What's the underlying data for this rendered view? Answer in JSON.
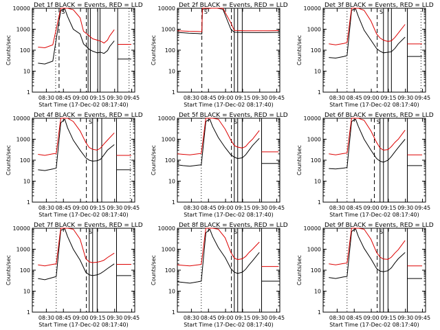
{
  "chart_data": [
    {
      "type": "line",
      "title": "Det 1f BLACK = Events, RED = LLD",
      "xlabel": "Start Time (17-Dec-02 08:17:40)",
      "ylabel": "Counts/sec",
      "x_ticks": [
        "08:30",
        "08:45",
        "09:00",
        "09:15",
        "09:30",
        "09:45"
      ],
      "y_ticks": [
        "1",
        "10",
        "100",
        "1000",
        "10000"
      ],
      "x_minutes": [
        5,
        11,
        18,
        25,
        28.5,
        31,
        36,
        42,
        45,
        50,
        53,
        57,
        60,
        63,
        66,
        68,
        72
      ],
      "series": [
        {
          "name": "Events",
          "color": "#000000",
          "values": [
            24,
            22,
            30,
            8000,
            9500,
            4000,
            1000,
            600,
            200,
            110,
            90,
            75,
            80,
            70,
            95,
            150,
            280
          ]
        },
        {
          "name": "LLD",
          "color": "#dd0000",
          "values": [
            140,
            130,
            180,
            10000,
            10000,
            10000,
            8500,
            3500,
            800,
            480,
            350,
            300,
            270,
            220,
            300,
            480,
            950
          ]
        }
      ],
      "post_series": {
        "x_minutes": [
          75,
          87
        ],
        "events": 38,
        "lld": 190
      },
      "solid_vlines": [
        49,
        51,
        57.5,
        59.5,
        75
      ],
      "dashed_vlines": [
        23.5,
        47.5
      ],
      "dotted_vlines": [
        20.5,
        85
      ],
      "markers": "S"
    },
    {
      "type": "line",
      "title": "Det 2f BLACK = Events, RED = LLD",
      "xlabel": "Start Time (17-Dec-02 08:17:40)",
      "ylabel": "Counts/sec",
      "x_ticks": [
        "08:30",
        "08:45",
        "09:00",
        "09:15",
        "09:30",
        "09:45"
      ],
      "y_ticks": [
        "1",
        "10",
        "100",
        "1000",
        "10000"
      ],
      "x_minutes": [
        0,
        5,
        10,
        18,
        21.5,
        22,
        30,
        35,
        40,
        47,
        50,
        60,
        70,
        80,
        89
      ],
      "series": [
        {
          "name": "Events",
          "color": "#000000",
          "values": [
            700,
            680,
            650,
            620,
            600,
            9000,
            10000,
            10000,
            9000,
            1000,
            720,
            700,
            690,
            700,
            710
          ]
        },
        {
          "name": "LLD",
          "color": "#dd0000",
          "values": [
            850,
            820,
            800,
            780,
            760,
            10000,
            10000,
            10000,
            10000,
            2000,
            870,
            850,
            840,
            850,
            860
          ]
        }
      ],
      "solid_vlines": [
        50,
        53,
        57
      ],
      "dashed_vlines": [
        21.5,
        47.5
      ],
      "dotted_vlines": [],
      "markers": "S"
    },
    {
      "type": "line",
      "title": "Det 3f BLACK = Events, RED = LLD",
      "xlabel": "Start Time (17-Dec-02 08:17:40)",
      "ylabel": "Counts/sec",
      "x_ticks": [
        "08:30",
        "08:45",
        "09:00",
        "09:15",
        "09:30",
        "09:45"
      ],
      "y_ticks": [
        "1",
        "10",
        "100",
        "1000",
        "10000"
      ],
      "x_minutes": [
        5,
        11,
        18,
        21,
        25,
        28.5,
        31,
        36,
        42,
        47,
        50,
        53,
        57,
        60,
        63,
        66,
        72
      ],
      "series": [
        {
          "name": "Events",
          "color": "#000000",
          "values": [
            45,
            42,
            50,
            55,
            8000,
            9500,
            4000,
            900,
            300,
            120,
            90,
            75,
            80,
            85,
            120,
            200,
            420
          ]
        },
        {
          "name": "LLD",
          "color": "#dd0000",
          "values": [
            200,
            180,
            210,
            230,
            10000,
            10000,
            10000,
            8000,
            2500,
            600,
            380,
            300,
            260,
            280,
            400,
            650,
            1700
          ]
        }
      ],
      "post_series": {
        "x_minutes": [
          74,
          87
        ],
        "events": 50,
        "lld": 200
      },
      "solid_vlines": [
        53,
        57,
        60,
        74
      ],
      "dashed_vlines": [
        47.5
      ],
      "dotted_vlines": [
        21,
        86
      ],
      "markers": "S"
    },
    {
      "type": "line",
      "title": "Det 4f BLACK = Events, RED = LLD",
      "xlabel": "Start Time (17-Dec-02 08:17:40)",
      "ylabel": "Counts/sec",
      "x_ticks": [
        "08:30",
        "08:45",
        "09:00",
        "09:15",
        "09:30",
        "09:45"
      ],
      "y_ticks": [
        "1",
        "10",
        "100",
        "1000",
        "10000"
      ],
      "x_minutes": [
        5,
        11,
        18,
        21,
        25,
        28.5,
        31,
        36,
        42,
        47,
        50,
        53,
        57,
        60,
        63,
        66,
        72
      ],
      "series": [
        {
          "name": "Events",
          "color": "#000000",
          "values": [
            35,
            32,
            38,
            42,
            6000,
            9000,
            3500,
            900,
            300,
            130,
            100,
            90,
            95,
            110,
            180,
            300,
            550
          ]
        },
        {
          "name": "LLD",
          "color": "#dd0000",
          "values": [
            190,
            170,
            200,
            210,
            10000,
            10000,
            10000,
            7000,
            2500,
            700,
            400,
            330,
            300,
            380,
            600,
            900,
            2000
          ]
        }
      ],
      "post_series": {
        "x_minutes": [
          74,
          87
        ],
        "events": 35,
        "lld": 170
      },
      "solid_vlines": [
        53,
        57,
        61,
        74
      ],
      "dashed_vlines": [
        47.5
      ],
      "dotted_vlines": [
        21,
        86
      ],
      "markers": "S"
    },
    {
      "type": "line",
      "title": "Det 5f BLACK = Events, RED = LLD",
      "xlabel": "Start Time (17-Dec-02 08:17:40)",
      "ylabel": "Counts/sec",
      "x_ticks": [
        "08:30",
        "08:45",
        "09:00",
        "09:15",
        "09:30",
        "09:45"
      ],
      "y_ticks": [
        "1",
        "10",
        "100",
        "1000",
        "10000"
      ],
      "x_minutes": [
        0,
        5,
        11,
        18,
        21,
        25,
        28.5,
        31,
        36,
        42,
        47,
        50,
        53,
        57,
        60,
        63,
        66,
        72
      ],
      "series": [
        {
          "name": "Events",
          "color": "#000000",
          "values": [
            60,
            55,
            52,
            58,
            60,
            7000,
            9000,
            4000,
            1200,
            400,
            180,
            140,
            120,
            130,
            180,
            300,
            500,
            1100
          ]
        },
        {
          "name": "LLD",
          "color": "#dd0000",
          "values": [
            200,
            190,
            180,
            200,
            210,
            10000,
            10000,
            10000,
            9000,
            3000,
            900,
            500,
            420,
            380,
            450,
            700,
            1000,
            2600
          ]
        }
      ],
      "post_series": {
        "x_minutes": [
          74,
          89
        ],
        "events": 70,
        "lld": 250
      },
      "solid_vlines": [
        50,
        53,
        57,
        74
      ],
      "dashed_vlines": [
        47.5
      ],
      "dotted_vlines": [
        21
      ],
      "markers": "S"
    },
    {
      "type": "line",
      "title": "Det 6f BLACK = Events, RED = LLD",
      "xlabel": "Start Time (17-Dec-02 08:17:40)",
      "ylabel": "Counts/sec",
      "x_ticks": [
        "08:30",
        "08:45",
        "09:00",
        "09:15",
        "09:30",
        "09:45"
      ],
      "y_ticks": [
        "1",
        "10",
        "100",
        "1000",
        "10000"
      ],
      "x_minutes": [
        5,
        11,
        18,
        21,
        25,
        28.5,
        31,
        36,
        42,
        47,
        50,
        53,
        57,
        60,
        63,
        66,
        72
      ],
      "series": [
        {
          "name": "Events",
          "color": "#000000",
          "values": [
            40,
            38,
            42,
            45,
            7000,
            9000,
            4000,
            1000,
            300,
            120,
            90,
            80,
            100,
            150,
            250,
            400,
            1000
          ]
        },
        {
          "name": "LLD",
          "color": "#dd0000",
          "values": [
            200,
            180,
            210,
            220,
            10000,
            10000,
            10000,
            8000,
            2500,
            700,
            380,
            300,
            320,
            450,
            700,
            1000,
            2700
          ]
        }
      ],
      "post_series": {
        "x_minutes": [
          74,
          87
        ],
        "events": 55,
        "lld": 180
      },
      "solid_vlines": [
        50,
        53,
        57,
        74
      ],
      "dashed_vlines": [
        45
      ],
      "dotted_vlines": [
        21
      ],
      "markers": "S"
    },
    {
      "type": "line",
      "title": "Det 7f BLACK = Events, RED = LLD",
      "xlabel": "Start Time (17-Dec-02 08:17:40)",
      "ylabel": "Counts/sec",
      "x_ticks": [
        "08:30",
        "08:45",
        "09:00",
        "09:15",
        "09:30",
        "09:45"
      ],
      "y_ticks": [
        "1",
        "10",
        "100",
        "1000",
        "10000"
      ],
      "x_minutes": [
        5,
        11,
        18,
        21,
        25,
        28.5,
        31,
        36,
        42,
        47,
        50,
        53,
        57,
        60,
        63,
        66,
        72
      ],
      "series": [
        {
          "name": "Events",
          "color": "#000000",
          "values": [
            40,
            35,
            45,
            50,
            8000,
            9500,
            4000,
            1000,
            300,
            80,
            60,
            55,
            60,
            70,
            90,
            120,
            200
          ]
        },
        {
          "name": "LLD",
          "color": "#dd0000",
          "values": [
            180,
            160,
            190,
            200,
            10000,
            10000,
            10000,
            9000,
            3000,
            350,
            250,
            230,
            240,
            260,
            300,
            400,
            650
          ]
        }
      ],
      "post_series": {
        "x_minutes": [
          74,
          87
        ],
        "events": 55,
        "lld": 190
      },
      "solid_vlines": [
        50,
        53,
        57,
        74
      ],
      "dashed_vlines": [
        47.5
      ],
      "dotted_vlines": [
        21
      ],
      "markers": "S"
    },
    {
      "type": "line",
      "title": "Det 8f BLACK = Events, RED = LLD",
      "xlabel": "Start Time (17-Dec-02 08:17:40)",
      "ylabel": "Counts/sec",
      "x_ticks": [
        "08:30",
        "08:45",
        "09:00",
        "09:15",
        "09:30",
        "09:45"
      ],
      "y_ticks": [
        "1",
        "10",
        "100",
        "1000",
        "10000"
      ],
      "x_minutes": [
        0,
        5,
        11,
        18,
        21,
        25,
        28.5,
        31,
        36,
        42,
        47,
        50,
        53,
        57,
        60,
        63,
        66,
        72
      ],
      "series": [
        {
          "name": "Events",
          "color": "#000000",
          "values": [
            28,
            26,
            24,
            28,
            30,
            6000,
            9000,
            4000,
            1200,
            400,
            120,
            80,
            70,
            80,
            110,
            180,
            280,
            700
          ]
        },
        {
          "name": "LLD",
          "color": "#dd0000",
          "values": [
            180,
            170,
            160,
            180,
            190,
            10000,
            10000,
            10000,
            9000,
            3500,
            700,
            380,
            320,
            350,
            450,
            700,
            1000,
            2200
          ]
        }
      ],
      "post_series": {
        "x_minutes": [
          74,
          89
        ],
        "events": 30,
        "lld": 150
      },
      "solid_vlines": [
        50,
        53,
        57,
        74
      ],
      "dashed_vlines": [
        47.5
      ],
      "dotted_vlines": [
        21
      ],
      "markers": "S"
    },
    {
      "type": "line",
      "title": "Det 9f BLACK = Events, RED = LLD",
      "xlabel": "Start Time (17-Dec-02 08:17:40)",
      "ylabel": "Counts/sec",
      "x_ticks": [
        "08:30",
        "08:45",
        "09:00",
        "09:15",
        "09:30",
        "09:45"
      ],
      "y_ticks": [
        "1",
        "10",
        "100",
        "1000",
        "10000"
      ],
      "x_minutes": [
        5,
        11,
        18,
        21,
        25,
        28.5,
        31,
        36,
        42,
        47,
        50,
        53,
        57,
        60,
        63,
        66,
        72
      ],
      "series": [
        {
          "name": "Events",
          "color": "#000000",
          "values": [
            45,
            40,
            48,
            50,
            7000,
            9500,
            4000,
            1100,
            350,
            120,
            90,
            85,
            95,
            130,
            220,
            350,
            700
          ]
        },
        {
          "name": "LLD",
          "color": "#dd0000",
          "values": [
            200,
            180,
            210,
            220,
            10000,
            10000,
            10000,
            9000,
            3000,
            700,
            420,
            340,
            330,
            420,
            650,
            950,
            2600
          ]
        }
      ],
      "post_series": {
        "x_minutes": [
          74,
          87
        ],
        "events": 40,
        "lld": 160
      },
      "solid_vlines": [
        50,
        53,
        57,
        74
      ],
      "dashed_vlines": [
        47.5
      ],
      "dotted_vlines": [
        21
      ],
      "markers": "S"
    }
  ]
}
